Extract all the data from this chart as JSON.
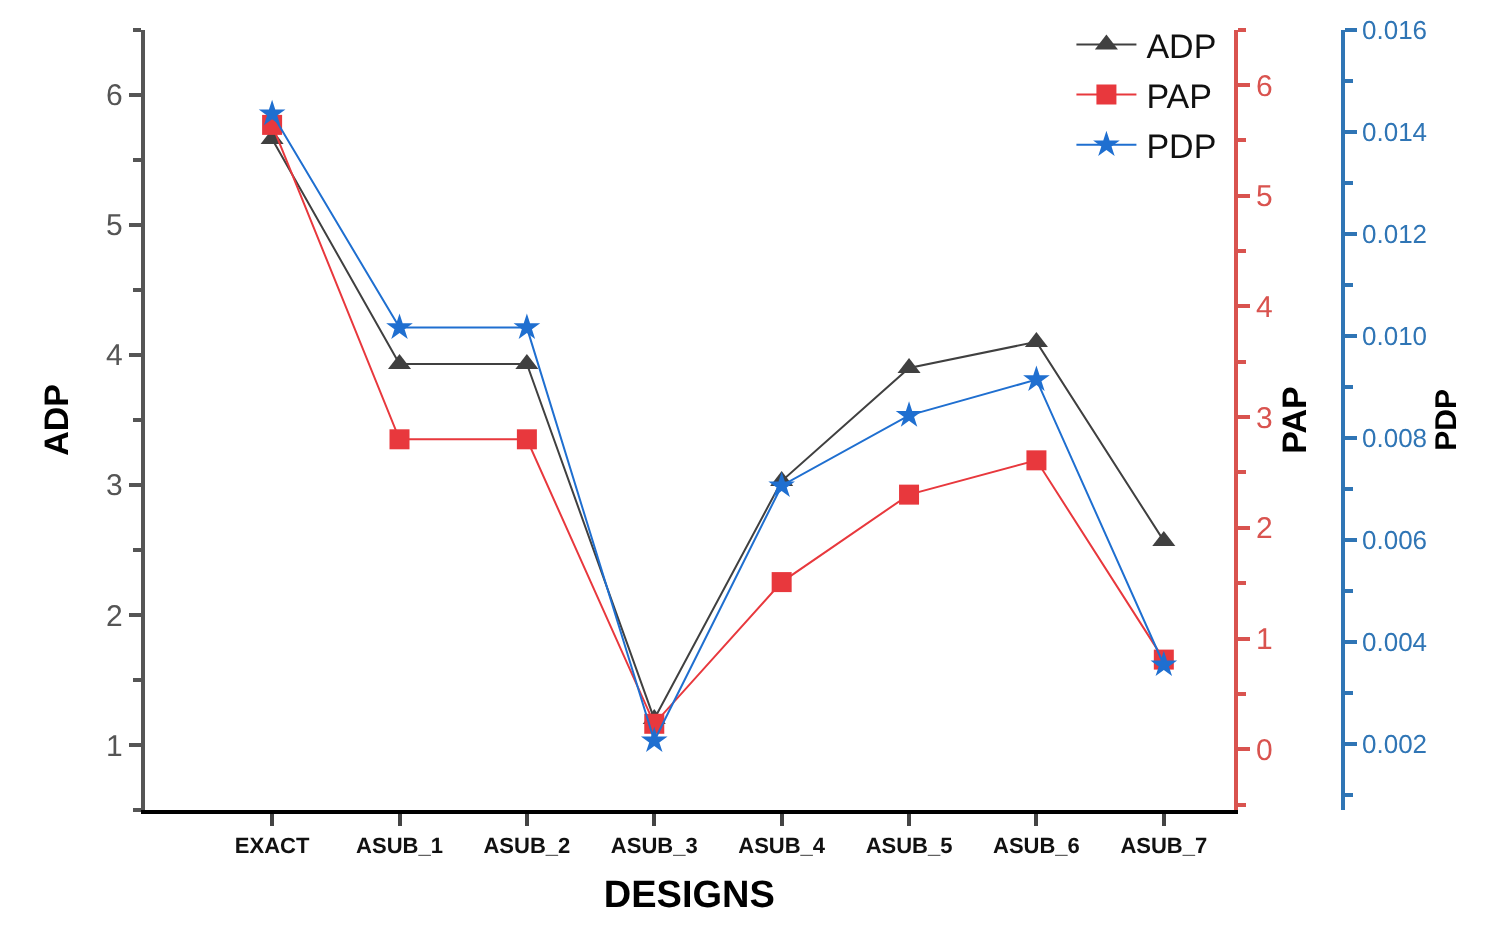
{
  "chart_data": {
    "type": "line",
    "xlabel": "DESIGNS",
    "ylabel": "ADP",
    "y2label": "PAP",
    "y3label": "PDP",
    "categories": [
      "EXACT",
      "ASUB_1",
      "ASUB_2",
      "ASUB_3",
      "ASUB_4",
      "ASUB_5",
      "ASUB_6",
      "ASUB_7"
    ],
    "series": [
      {
        "name": "ADP",
        "color": "#404040",
        "marker": "triangle",
        "axis": "y",
        "values": [
          5.66,
          3.93,
          3.93,
          1.2,
          3.03,
          3.9,
          4.1,
          2.57
        ]
      },
      {
        "name": "PAP",
        "color": "#e8383d",
        "marker": "square",
        "axis": "y2",
        "values": [
          5.64,
          2.8,
          2.8,
          0.23,
          1.51,
          2.3,
          2.61,
          0.81
        ]
      },
      {
        "name": "PDP",
        "color": "#1f6fd0",
        "marker": "star",
        "axis": "y3",
        "values": [
          0.01435,
          0.01016,
          0.01016,
          0.00206,
          0.00706,
          0.00844,
          0.00914,
          0.00355
        ]
      }
    ],
    "ylim": [
      0.5,
      6.5
    ],
    "yticks": [
      1,
      2,
      3,
      4,
      5,
      6
    ],
    "y2lim": [
      -0.55,
      6.5
    ],
    "y2ticks": [
      0,
      1,
      2,
      3,
      4,
      5,
      6
    ],
    "y3lim": [
      0.0007,
      0.016
    ],
    "y3ticks": [
      0.002,
      0.004,
      0.006,
      0.008,
      {
        "value": 0.01,
        "label": "0.010"
      },
      0.012,
      0.014,
      0.016
    ],
    "legend": "top right",
    "grid": false
  }
}
